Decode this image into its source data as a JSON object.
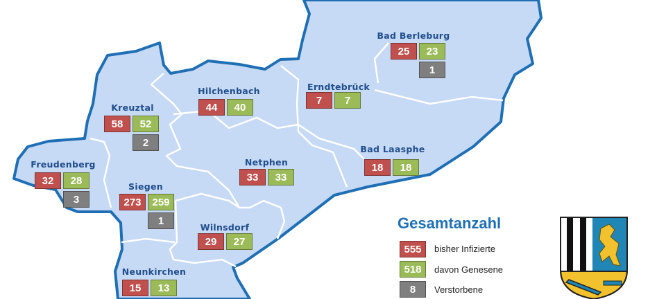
{
  "colors": {
    "infected": "#c0504d",
    "recovered": "#9bbb59",
    "deceased": "#7f7f7f",
    "region_fill": "#c6d9f5",
    "border": "#1f6fb5",
    "label": "#1f4e8c"
  },
  "towns": [
    {
      "name": "Bad Berleburg",
      "infected": "25",
      "recovered": "23",
      "deceased": "1"
    },
    {
      "name": "Hilchenbach",
      "infected": "44",
      "recovered": "40"
    },
    {
      "name": "Erndtebrück",
      "infected": "7",
      "recovered": "7"
    },
    {
      "name": "Kreuztal",
      "infected": "58",
      "recovered": "52",
      "deceased": "2"
    },
    {
      "name": "Bad Laasphe",
      "infected": "18",
      "recovered": "18"
    },
    {
      "name": "Freudenberg",
      "infected": "32",
      "recovered": "28",
      "deceased": "3"
    },
    {
      "name": "Netphen",
      "infected": "33",
      "recovered": "33"
    },
    {
      "name": "Siegen",
      "infected": "273",
      "recovered": "259",
      "deceased": "1"
    },
    {
      "name": "Wilnsdorf",
      "infected": "29",
      "recovered": "27"
    },
    {
      "name": "Neunkirchen",
      "infected": "15",
      "recovered": "13"
    }
  ],
  "legend": {
    "title": "Gesamtanzahl",
    "items": [
      {
        "value": "555",
        "label": "bisher Infizierte"
      },
      {
        "value": "518",
        "label": "davon Genesene"
      },
      {
        "value": "8",
        "label": "Verstorbene"
      }
    ]
  },
  "crest_icon": "coat-of-arms-siegen-wittgenstein"
}
